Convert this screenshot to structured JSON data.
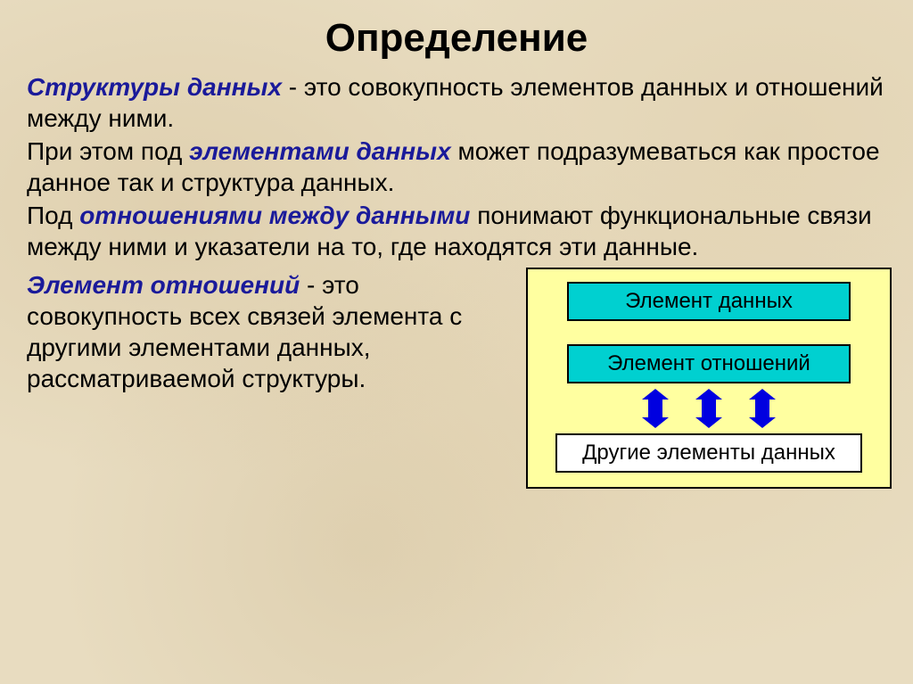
{
  "title": "Определение",
  "p1_term": "Структуры данных",
  "p1_rest": " - это совокупность элементов данных и отношений между ними.",
  "p2_a": "При этом под ",
  "p2_term": "элементами данных",
  "p2_b": " может подразумеваться как простое данное так и структура данных.",
  "p3_a": "Под ",
  "p3_term": "отношениями между данными",
  "p3_b": " понимают функциональные связи между ними и указатели на то, где находятся эти данные.",
  "p4_term": "Элемент отношений",
  "p4_rest": " - это совокупность всех связей элемента с другими элементами данных, рассматриваемой структуры.",
  "diagram": {
    "box1": "Элемент данных",
    "box2": "Элемент отношений",
    "box3": "Другие элементы данных",
    "colors": {
      "panel_bg": "#ffffa0",
      "cyan": "#00d0d0",
      "white": "#ffffff",
      "arrow": "#0000e0",
      "border": "#000000"
    },
    "arrow_count": 3
  }
}
